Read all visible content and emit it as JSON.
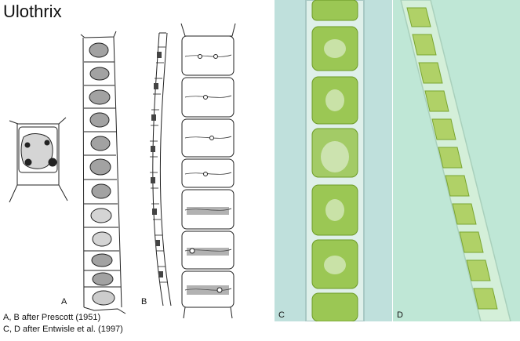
{
  "title": "Ulothrix",
  "panels": {
    "a": "A",
    "b": "B",
    "c": "C",
    "d": "D"
  },
  "credits": {
    "line1": "A, B after Prescott (1951)",
    "line2": "C, D after Entwisle et al. (1997)"
  },
  "colors": {
    "photo_c_background": "#bfe0dc",
    "photo_d_background": "#bfe7d6",
    "chloroplast": "#8fbf3a",
    "drawing_ink": "#222222"
  }
}
